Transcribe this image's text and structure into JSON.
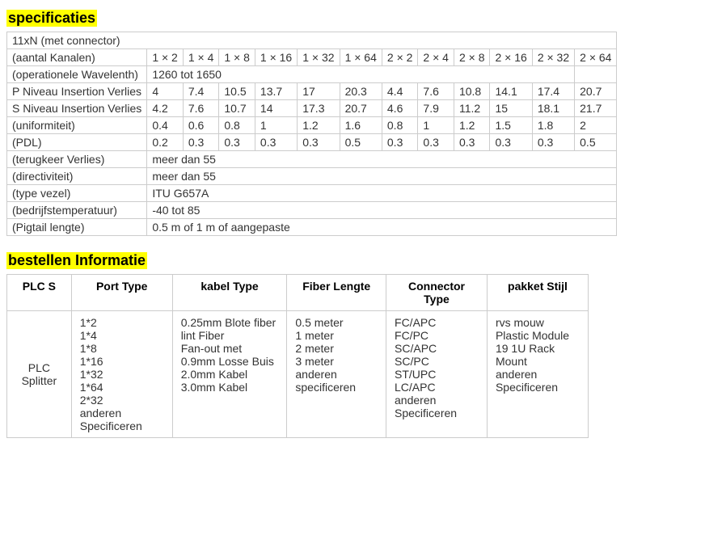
{
  "section1_title": "specificaties",
  "spec": {
    "header_row": "11xN (met connector)",
    "col_labels_row_label": "(aantal Kanalen)",
    "col_labels": [
      "1 × 2",
      "1 × 4",
      "1 × 8",
      "1 × 16",
      "1 × 32",
      "1 × 64",
      "2 × 2",
      "2 × 4",
      "2 × 8",
      "2 × 16",
      "2 × 32",
      "2 × 64"
    ],
    "rows": [
      {
        "label": "(operationele Wavelenth)",
        "span": "1260 tot 1650",
        "span_cols": 11,
        "trailing_empty": 1
      },
      {
        "label": "P Niveau Insertion Verlies",
        "values": [
          "4",
          "7.4",
          "10.5",
          "13.7",
          "17",
          "20.3",
          "4.4",
          "7.6",
          "10.8",
          "14.1",
          "17.4",
          "20.7"
        ]
      },
      {
        "label": "S Niveau Insertion Verlies",
        "values": [
          "4.2",
          "7.6",
          "10.7",
          "14",
          "17.3",
          "20.7",
          "4.6",
          "7.9",
          "11.2",
          "15",
          "18.1",
          "21.7"
        ]
      },
      {
        "label": "(uniformiteit)",
        "values": [
          "0.4",
          "0.6",
          "0.8",
          "1",
          "1.2",
          "1.6",
          "0.8",
          "1",
          "1.2",
          "1.5",
          "1.8",
          "2"
        ]
      },
      {
        "label": "(PDL)",
        "values": [
          "0.2",
          "0.3",
          "0.3",
          "0.3",
          "0.3",
          "0.5",
          "0.3",
          "0.3",
          "0.3",
          "0.3",
          "0.3",
          "0.5"
        ]
      },
      {
        "label": "(terugkeer Verlies)",
        "span": "meer dan 55",
        "span_cols": 12
      },
      {
        "label": "(directiviteit)",
        "span": "meer dan 55",
        "span_cols": 12
      },
      {
        "label": "(type vezel)",
        "span": "ITU G657A",
        "span_cols": 12
      },
      {
        "label": "(bedrijfstemperatuur)",
        "span": "-40 tot 85",
        "span_cols": 12
      },
      {
        "label": "(Pigtail lengte)",
        "span": "0.5 m of 1 m of aangepaste",
        "span_cols": 12
      }
    ]
  },
  "section2_title": "bestellen Informatie",
  "order": {
    "headers": [
      "PLC S",
      "Port Type",
      "kabel Type",
      "Fiber Lengte",
      "Connector Type",
      "pakket Stijl"
    ],
    "row": {
      "c0": "PLC Splitter",
      "c1": "1*2\n1*4\n1*8\n1*16\n1*32\n1*64\n2*32\nanderen Specificeren",
      "c2": "0.25mm Blote fiber\nlint Fiber\nFan-out met 0.9mm Losse Buis\n2.0mm Kabel\n3.0mm Kabel",
      "c3": "0.5 meter\n1 meter\n2 meter\n3 meter\nanderen specificeren",
      "c4": "FC/APC\nFC/PC\nSC/APC\nSC/PC\nST/UPC\nLC/APC\nanderen Specificeren",
      "c5": "rvs mouw\nPlastic Module\n19 1U Rack Mount\nanderen Specificeren"
    }
  }
}
